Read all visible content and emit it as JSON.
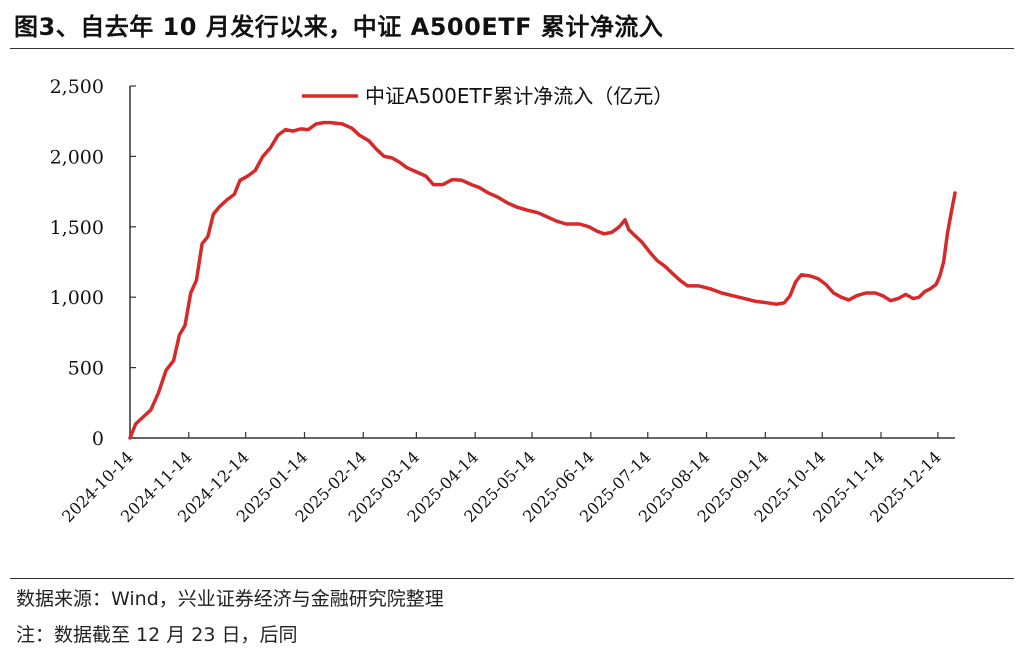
{
  "figure_title": "图3、自去年 10 月发行以来，中证 A500ETF 累计净流入",
  "footer": {
    "source": "数据来源：Wind，兴业证券经济与金融研究院整理",
    "note": "注：数据截至 12 月 23 日，后同"
  },
  "colors": {
    "series": "#d62a2a",
    "axis": "#333333"
  },
  "chart_data": {
    "type": "line",
    "title": "",
    "xlabel": "",
    "ylabel": "",
    "ylim": [
      0,
      2500
    ],
    "xlim": [
      "2024-10-14",
      "2025-12-23"
    ],
    "y_ticks": [
      0,
      500,
      1000,
      1500,
      2000,
      2500
    ],
    "y_tick_labels": [
      "0",
      "500",
      "1,000",
      "1,500",
      "2,000",
      "2,500"
    ],
    "x_ticks": [
      "2024-10-14",
      "2024-11-14",
      "2024-12-14",
      "2025-01-14",
      "2025-02-14",
      "2025-03-14",
      "2025-04-14",
      "2025-05-14",
      "2025-06-14",
      "2025-07-14",
      "2025-08-14",
      "2025-09-14",
      "2025-10-14",
      "2025-11-14",
      "2025-12-14"
    ],
    "grid": false,
    "legend": {
      "position": "top-center"
    },
    "series": [
      {
        "name": "中证A500ETF累计净流入（亿元）",
        "color": "#d62a2a",
        "points": [
          [
            "2024-10-14",
            0
          ],
          [
            "2024-10-17",
            100
          ],
          [
            "2024-10-21",
            150
          ],
          [
            "2024-10-25",
            200
          ],
          [
            "2024-10-29",
            320
          ],
          [
            "2024-11-02",
            480
          ],
          [
            "2024-11-06",
            550
          ],
          [
            "2024-11-09",
            730
          ],
          [
            "2024-11-12",
            800
          ],
          [
            "2024-11-15",
            1030
          ],
          [
            "2024-11-18",
            1120
          ],
          [
            "2024-11-21",
            1380
          ],
          [
            "2024-11-24",
            1430
          ],
          [
            "2024-11-27",
            1590
          ],
          [
            "2024-11-30",
            1640
          ],
          [
            "2024-12-04",
            1690
          ],
          [
            "2024-12-08",
            1730
          ],
          [
            "2024-12-11",
            1830
          ],
          [
            "2024-12-15",
            1860
          ],
          [
            "2024-12-19",
            1900
          ],
          [
            "2024-12-23",
            2000
          ],
          [
            "2024-12-27",
            2060
          ],
          [
            "2024-12-31",
            2150
          ],
          [
            "2025-01-04",
            2190
          ],
          [
            "2025-01-08",
            2180
          ],
          [
            "2025-01-12",
            2195
          ],
          [
            "2025-01-16",
            2190
          ],
          [
            "2025-01-20",
            2230
          ],
          [
            "2025-01-24",
            2240
          ],
          [
            "2025-01-28",
            2240
          ],
          [
            "2025-02-03",
            2230
          ],
          [
            "2025-02-08",
            2200
          ],
          [
            "2025-02-12",
            2150
          ],
          [
            "2025-02-17",
            2110
          ],
          [
            "2025-02-21",
            2050
          ],
          [
            "2025-02-25",
            2000
          ],
          [
            "2025-03-01",
            1990
          ],
          [
            "2025-03-05",
            1960
          ],
          [
            "2025-03-09",
            1920
          ],
          [
            "2025-03-14",
            1890
          ],
          [
            "2025-03-19",
            1860
          ],
          [
            "2025-03-23",
            1800
          ],
          [
            "2025-03-28",
            1800
          ],
          [
            "2025-04-02",
            1835
          ],
          [
            "2025-04-07",
            1830
          ],
          [
            "2025-04-12",
            1800
          ],
          [
            "2025-04-16",
            1780
          ],
          [
            "2025-04-21",
            1740
          ],
          [
            "2025-04-26",
            1710
          ],
          [
            "2025-05-01",
            1670
          ],
          [
            "2025-05-06",
            1640
          ],
          [
            "2025-05-11",
            1620
          ],
          [
            "2025-05-17",
            1600
          ],
          [
            "2025-05-22",
            1570
          ],
          [
            "2025-05-27",
            1540
          ],
          [
            "2025-06-01",
            1520
          ],
          [
            "2025-06-08",
            1520
          ],
          [
            "2025-06-13",
            1500
          ],
          [
            "2025-06-17",
            1470
          ],
          [
            "2025-06-21",
            1450
          ],
          [
            "2025-06-25",
            1460
          ],
          [
            "2025-06-29",
            1500
          ],
          [
            "2025-07-02",
            1550
          ],
          [
            "2025-07-04",
            1480
          ],
          [
            "2025-07-07",
            1440
          ],
          [
            "2025-07-11",
            1390
          ],
          [
            "2025-07-15",
            1320
          ],
          [
            "2025-07-19",
            1260
          ],
          [
            "2025-07-23",
            1220
          ],
          [
            "2025-07-27",
            1170
          ],
          [
            "2025-07-31",
            1120
          ],
          [
            "2025-08-04",
            1080
          ],
          [
            "2025-08-10",
            1080
          ],
          [
            "2025-08-16",
            1060
          ],
          [
            "2025-08-22",
            1030
          ],
          [
            "2025-08-28",
            1010
          ],
          [
            "2025-09-03",
            990
          ],
          [
            "2025-09-09",
            970
          ],
          [
            "2025-09-15",
            960
          ],
          [
            "2025-09-20",
            950
          ],
          [
            "2025-09-24",
            960
          ],
          [
            "2025-09-27",
            1010
          ],
          [
            "2025-09-30",
            1110
          ],
          [
            "2025-10-03",
            1160
          ],
          [
            "2025-10-08",
            1150
          ],
          [
            "2025-10-12",
            1130
          ],
          [
            "2025-10-16",
            1090
          ],
          [
            "2025-10-20",
            1030
          ],
          [
            "2025-10-24",
            1000
          ],
          [
            "2025-10-28",
            980
          ],
          [
            "2025-11-01",
            1010
          ],
          [
            "2025-11-06",
            1030
          ],
          [
            "2025-11-11",
            1030
          ],
          [
            "2025-11-15",
            1010
          ],
          [
            "2025-11-19",
            975
          ],
          [
            "2025-11-23",
            990
          ],
          [
            "2025-11-27",
            1020
          ],
          [
            "2025-12-01",
            990
          ],
          [
            "2025-12-04",
            1000
          ],
          [
            "2025-12-07",
            1040
          ],
          [
            "2025-12-10",
            1060
          ],
          [
            "2025-12-13",
            1090
          ],
          [
            "2025-12-15",
            1150
          ],
          [
            "2025-12-17",
            1250
          ],
          [
            "2025-12-19",
            1450
          ],
          [
            "2025-12-21",
            1600
          ],
          [
            "2025-12-23",
            1740
          ]
        ]
      }
    ]
  }
}
